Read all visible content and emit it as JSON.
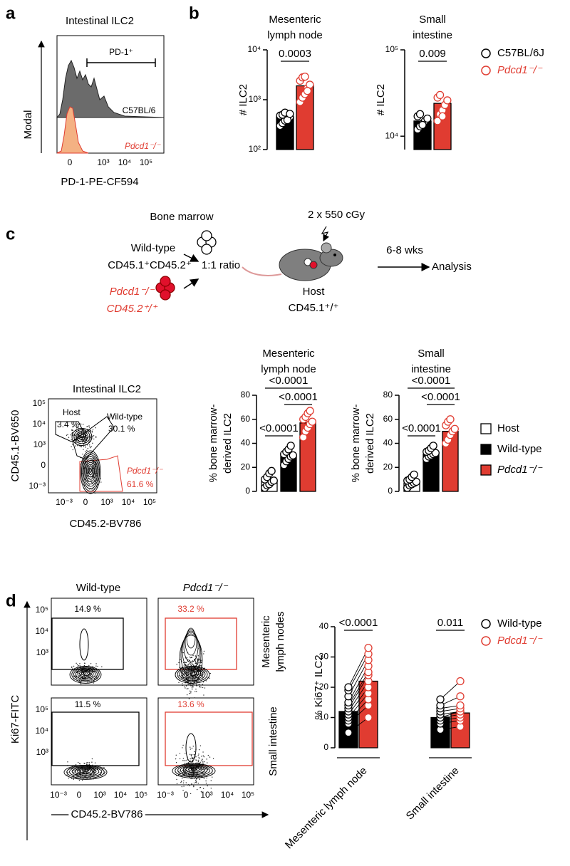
{
  "panel_labels": [
    "a",
    "b",
    "c",
    "d"
  ],
  "panel_a": {
    "title": "Intestinal ILC2",
    "y_label": "Modal",
    "x_label": "PD-1-PE-CF594",
    "gate_label": "PD-1⁺",
    "samples": [
      "C57BL/6",
      "Pdcd1⁻/⁻"
    ],
    "xticks": [
      "0",
      "10³",
      "10⁴",
      "10⁵"
    ]
  },
  "panel_c_schematic": {
    "donor_title": "Bone marrow",
    "donor1": "Wild-type",
    "donor1_marker": "CD45.1⁺CD45.2⁺",
    "donor2": "Pdcd1⁻/⁻",
    "donor2_marker": "CD45.2⁺/⁺",
    "ratio": "1:1 ratio",
    "irradiation": "2 x 550 cGy",
    "host": "Host",
    "host_marker": "CD45.1⁺/⁺",
    "time": "6-8 wks",
    "readout": "Analysis"
  },
  "panel_c_flow": {
    "title": "Intestinal ILC2",
    "y_label": "CD45.1-BV650",
    "x_label": "CD45.2-BV786",
    "gates": [
      {
        "name": "Host",
        "percent": "3.4 %"
      },
      {
        "name": "Wild-type",
        "percent": "30.1 %"
      },
      {
        "name": "Pdcd1⁻/⁻",
        "percent": "61.6 %"
      }
    ],
    "xticks": [
      "10⁻³",
      "0",
      "10³",
      "10⁴",
      "10⁵"
    ],
    "yticks": [
      "10⁵",
      "10⁴",
      "10³",
      "0",
      "10⁻³"
    ]
  },
  "panel_d_flow": {
    "columns": [
      "Wild-type",
      "Pdcd1⁻/⁻"
    ],
    "rows": [
      {
        "lines": [
          "Mesenteric",
          "lymph nodes"
        ]
      },
      {
        "lines": [
          "Small intestine"
        ]
      }
    ],
    "gates": [
      [
        "14.9 %",
        "33.2 %"
      ],
      [
        "11.5 %",
        "13.6 %"
      ]
    ],
    "y_label": "Ki67-FITC",
    "x_label": "CD45.2-BV786",
    "xticks": [
      "10⁻³",
      "0",
      "10³",
      "10⁴",
      "10⁵"
    ],
    "yticks": [
      "10⁵",
      "10⁴",
      "10³"
    ]
  },
  "chart_data": [
    {
      "type": "bar",
      "title": [
        "Mesenteric",
        "lymph node"
      ],
      "y_label": "# ILC2",
      "log": true,
      "ylim": [
        100,
        10000
      ],
      "yticks": [
        {
          "value": 100,
          "label": "10²"
        },
        {
          "value": 1000,
          "label": "10³"
        },
        {
          "value": 10000,
          "label": "10⁴"
        }
      ],
      "categories": [
        null
      ],
      "comparisons": [
        "0.0003"
      ],
      "series": [
        {
          "name": "C57BL/6J",
          "color": "#000000",
          "values": [
            450
          ],
          "points": [
            [
              300,
              340,
              380,
              420,
              450,
              480,
              500,
              550,
              390,
              520
            ]
          ]
        },
        {
          "name": "Pdcd1⁻/⁻",
          "color": "#e03c31",
          "values": [
            1900
          ],
          "points": [
            [
              900,
              1100,
              1300,
              1700,
              2000,
              2400,
              2800,
              2900,
              1500
            ]
          ]
        }
      ]
    },
    {
      "type": "bar",
      "title": [
        "Small",
        "intestine"
      ],
      "y_label": "# ILC2",
      "log": true,
      "ylim": [
        7000,
        100000
      ],
      "yticks": [
        {
          "value": 10000,
          "label": "10⁴"
        },
        {
          "value": 100000,
          "label": "10⁵"
        }
      ],
      "categories": [
        null
      ],
      "comparisons": [
        "0.009"
      ],
      "series": [
        {
          "color": "#000000",
          "values": [
            15000
          ],
          "points": [
            [
              12000,
              13000,
              14000,
              15000,
              16000,
              17000,
              18000,
              13500
            ]
          ]
        },
        {
          "color": "#e03c31",
          "values": [
            24000
          ],
          "points": [
            [
              15000,
              18000,
              20000,
              23000,
              26000,
              28000,
              30000,
              17000
            ]
          ]
        }
      ]
    },
    {
      "type": "bar",
      "title": [
        "Mesenteric",
        "lymph node"
      ],
      "y_label": [
        "% bone marrow-",
        "derived ILC2"
      ],
      "ylim": [
        0,
        80
      ],
      "yticks": [
        0,
        20,
        40,
        60,
        80
      ],
      "categories": [
        null
      ],
      "comparisons": [
        "<0.0001",
        "<0.0001",
        "<0.0001"
      ],
      "series": [
        {
          "name": "Host",
          "color": "#ffffff",
          "values": [
            8
          ],
          "points": [
            [
              3,
              5,
              6,
              8,
              9,
              10,
              12,
              15,
              17
            ]
          ]
        },
        {
          "name": "Wild-type",
          "color": "#000000",
          "values": [
            30
          ],
          "points": [
            [
              22,
              25,
              27,
              29,
              30,
              31,
              33,
              35,
              38
            ]
          ]
        },
        {
          "name": "Pdcd1⁻/⁻",
          "color": "#e03c31",
          "values": [
            57
          ],
          "points": [
            [
              45,
              50,
              53,
              56,
              58,
              60,
              62,
              65,
              67
            ]
          ]
        }
      ]
    },
    {
      "type": "bar",
      "title": [
        "Small",
        "intestine"
      ],
      "y_label": [
        "% bone marrow-",
        "derived ILC2"
      ],
      "ylim": [
        0,
        80
      ],
      "yticks": [
        0,
        20,
        40,
        60,
        80
      ],
      "categories": [
        null
      ],
      "comparisons": [
        "<0.0001",
        "<0.0001",
        "<0.0001"
      ],
      "series": [
        {
          "color": "#ffffff",
          "values": [
            7
          ],
          "points": [
            [
              3,
              5,
              6,
              7,
              8,
              9,
              10,
              12,
              14
            ]
          ]
        },
        {
          "color": "#000000",
          "values": [
            31
          ],
          "points": [
            [
              27,
              29,
              30,
              31,
              32,
              33,
              34,
              36,
              38
            ]
          ]
        },
        {
          "color": "#e03c31",
          "values": [
            50
          ],
          "points": [
            [
              40,
              43,
              47,
              50,
              52,
              55,
              58,
              60
            ]
          ]
        }
      ]
    },
    {
      "type": "bar",
      "y_label": "% Ki67⁺ ILC2",
      "ylim": [
        0,
        40
      ],
      "yticks": [
        0,
        10,
        20,
        30,
        40
      ],
      "categories": [
        "Mesenteric lymph node",
        "Small intestine"
      ],
      "comparisons": [
        "<0.0001",
        "0.011"
      ],
      "series": [
        {
          "name": "Wild-type",
          "color": "#000000",
          "values": [
            12,
            10
          ],
          "points": [
            [
              5,
              8,
              9,
              10,
              11,
              12,
              13,
              14,
              15,
              17,
              19,
              20
            ],
            [
              6,
              8,
              9,
              10,
              10,
              11,
              12,
              13,
              14,
              16
            ]
          ]
        },
        {
          "name": "Pdcd1⁻/⁻",
          "color": "#e03c31",
          "values": [
            22,
            11.5
          ],
          "points": [
            [
              10,
              14,
              16,
              18,
              20,
              22,
              24,
              25,
              27,
              29,
              31,
              33
            ],
            [
              7,
              9,
              10,
              11,
              12,
              12,
              13,
              14,
              17,
              22
            ]
          ]
        }
      ]
    }
  ]
}
